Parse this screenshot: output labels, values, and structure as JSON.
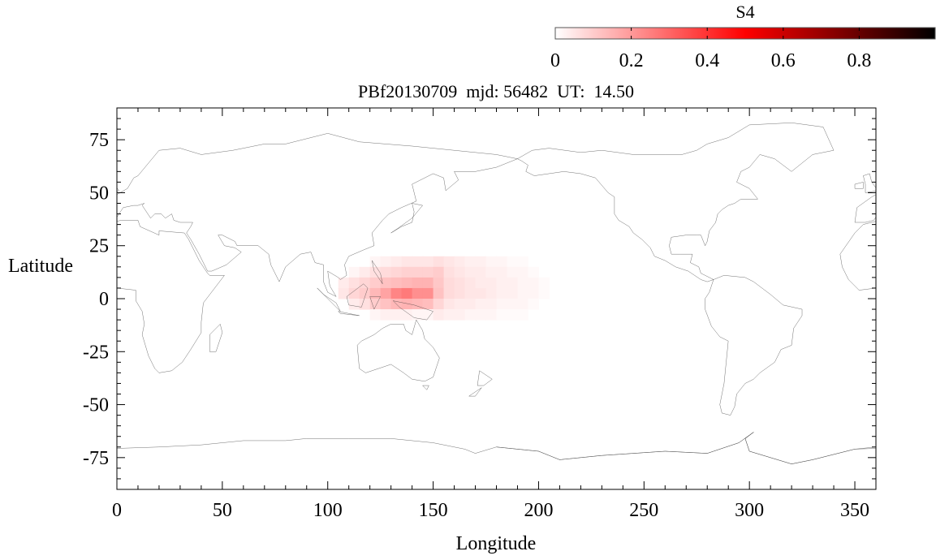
{
  "chart_data": {
    "type": "heatmap",
    "title": "PBf20130709  mjd: 56482  UT:  14.50",
    "xlabel": "Longitude",
    "ylabel": "Latitude",
    "xlim": [
      0,
      360
    ],
    "ylim": [
      -90,
      90
    ],
    "xticks": [
      0,
      50,
      100,
      150,
      200,
      250,
      300,
      350
    ],
    "yticks": [
      -75,
      -50,
      -25,
      0,
      25,
      50,
      75
    ],
    "background": "world coastline map",
    "colorbar": {
      "label": "S4",
      "range": [
        0,
        1
      ],
      "ticks": [
        "0",
        "0.2",
        "0.4",
        "0.6",
        "0.8"
      ],
      "tick_values": [
        0,
        0.2,
        0.4,
        0.6,
        0.8
      ],
      "colors": [
        "#ffffff",
        "#ff0000",
        "#000000"
      ],
      "placement": "top-right"
    },
    "grid_lon_start": [
      105,
      110,
      115,
      120,
      125,
      130,
      135,
      140,
      145,
      150,
      155,
      160,
      165,
      170,
      175,
      180,
      185,
      190,
      195,
      200
    ],
    "grid_lat_start": [
      15,
      10,
      5,
      0,
      -5,
      -10
    ],
    "cell_size_deg": 5,
    "values": [
      [
        0,
        0,
        0,
        0.02,
        0.03,
        0.04,
        0.05,
        0.05,
        0.05,
        0.06,
        0.05,
        0.04,
        0.03,
        0.03,
        0.02,
        0.02,
        0.01,
        0.01,
        0,
        0
      ],
      [
        0,
        0.02,
        0.04,
        0.06,
        0.07,
        0.08,
        0.09,
        0.09,
        0.09,
        0.1,
        0.06,
        0.05,
        0.04,
        0.04,
        0.03,
        0.03,
        0.02,
        0.02,
        0.01,
        0
      ],
      [
        0.04,
        0.06,
        0.08,
        0.1,
        0.12,
        0.13,
        0.14,
        0.15,
        0.15,
        0.11,
        0.07,
        0.06,
        0.05,
        0.04,
        0.04,
        0.03,
        0.03,
        0.02,
        0.02,
        0.01
      ],
      [
        0.05,
        0.08,
        0.1,
        0.14,
        0.18,
        0.24,
        0.26,
        0.22,
        0.22,
        0.12,
        0.07,
        0.06,
        0.05,
        0.05,
        0.04,
        0.03,
        0.03,
        0.02,
        0.02,
        0.01
      ],
      [
        0,
        0.04,
        0.06,
        0.1,
        0.12,
        0.14,
        0.15,
        0.14,
        0.13,
        0.08,
        0.05,
        0.04,
        0.04,
        0.03,
        0.03,
        0.02,
        0.02,
        0.02,
        0.01,
        0
      ],
      [
        0,
        0,
        0,
        0.02,
        0.03,
        0.03,
        0.03,
        0.02,
        0.02,
        0.04,
        0.03,
        0.03,
        0.02,
        0.02,
        0.02,
        0.01,
        0.01,
        0.01,
        0,
        0
      ]
    ]
  }
}
